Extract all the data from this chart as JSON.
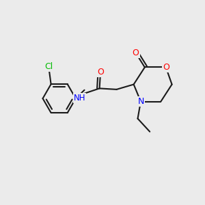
{
  "background_color": "#ebebeb",
  "bond_color": "#1a1a1a",
  "atom_colors": {
    "O": "#ff0000",
    "N": "#0000ff",
    "Cl": "#00bb00",
    "C": "#1a1a1a"
  },
  "figsize": [
    3.0,
    3.0
  ],
  "dpi": 100
}
